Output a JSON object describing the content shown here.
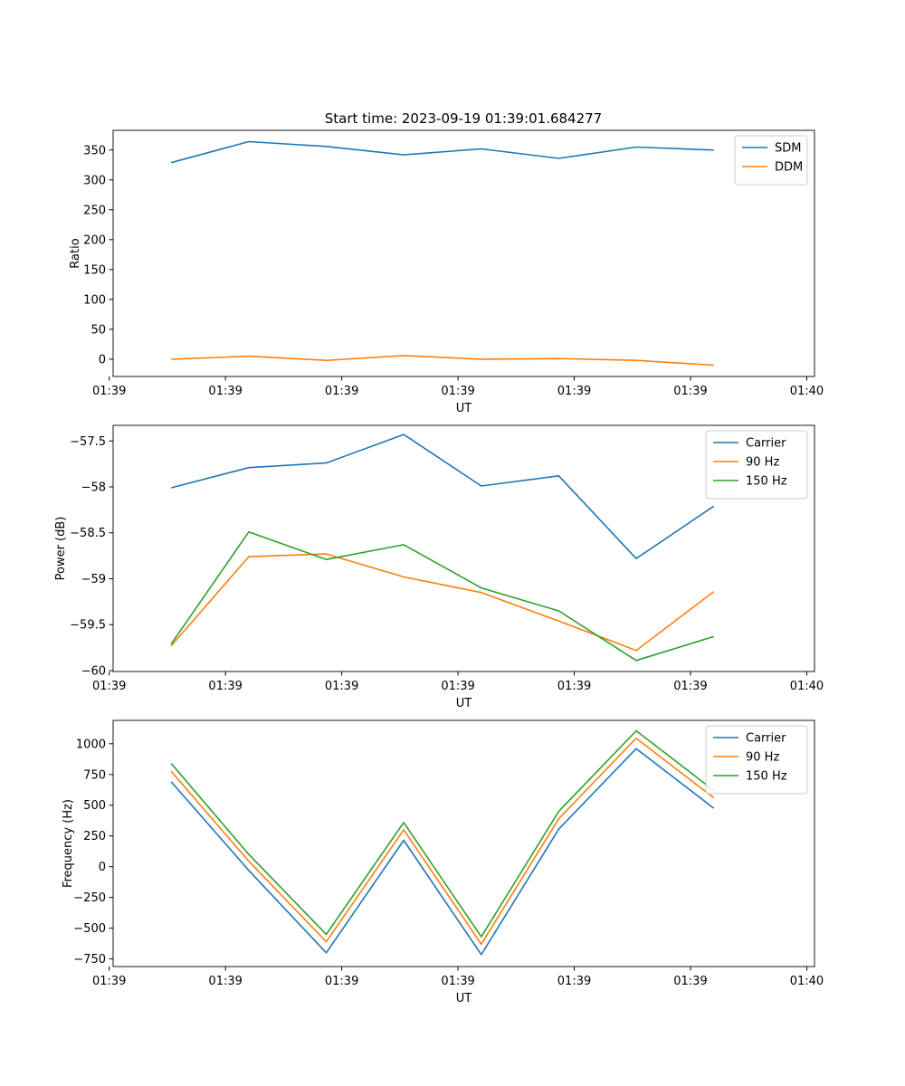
{
  "figure_title": "Start time: 2023-09-19 01:39:01.684277",
  "chart_data": [
    {
      "type": "line",
      "title": "Start time: 2023-09-19 01:39:01.684277",
      "xlabel": "UT",
      "ylabel": "Ratio",
      "x": [
        1,
        2,
        3,
        4,
        5,
        6,
        7,
        8
      ],
      "xlim": [
        0.25,
        9.3
      ],
      "xticks": [
        {
          "value": 0.2,
          "label": "01:39"
        },
        {
          "value": 1.7,
          "label": "01:39"
        },
        {
          "value": 3.2,
          "label": "01:39"
        },
        {
          "value": 4.7,
          "label": "01:39"
        },
        {
          "value": 6.2,
          "label": "01:39"
        },
        {
          "value": 7.7,
          "label": "01:39"
        },
        {
          "value": 9.2,
          "label": "01:40"
        }
      ],
      "ylim": [
        -29,
        383
      ],
      "yticks": [
        0,
        50,
        100,
        150,
        200,
        250,
        300,
        350
      ],
      "legend": "top-right",
      "series": [
        {
          "name": "SDM",
          "color": "#1f77b4",
          "values": [
            329,
            364,
            356,
            342,
            352,
            336,
            355,
            350
          ]
        },
        {
          "name": "DDM",
          "color": "#ff7f0e",
          "values": [
            0,
            5,
            -2,
            6,
            0,
            1,
            -2,
            -10
          ]
        }
      ]
    },
    {
      "type": "line",
      "title": "",
      "xlabel": "UT",
      "ylabel": "Power (dB)",
      "x": [
        1,
        2,
        3,
        4,
        5,
        6,
        7,
        8
      ],
      "xlim": [
        0.25,
        9.3
      ],
      "xticks": [
        {
          "value": 0.2,
          "label": "01:39"
        },
        {
          "value": 1.7,
          "label": "01:39"
        },
        {
          "value": 3.2,
          "label": "01:39"
        },
        {
          "value": 4.7,
          "label": "01:39"
        },
        {
          "value": 6.2,
          "label": "01:39"
        },
        {
          "value": 7.7,
          "label": "01:39"
        },
        {
          "value": 9.2,
          "label": "01:40"
        }
      ],
      "ylim": [
        -60.01,
        -57.33
      ],
      "yticks": [
        -60.0,
        -59.5,
        -59.0,
        -58.5,
        -58.0,
        -57.5
      ],
      "legend": "top-right",
      "series": [
        {
          "name": "Carrier",
          "color": "#1f77b4",
          "values": [
            -58.01,
            -57.79,
            -57.74,
            -57.43,
            -57.99,
            -57.88,
            -58.78,
            -58.21
          ]
        },
        {
          "name": "90 Hz",
          "color": "#ff7f0e",
          "values": [
            -59.73,
            -58.76,
            -58.73,
            -58.98,
            -59.15,
            -59.46,
            -59.78,
            -59.14
          ]
        },
        {
          "name": "150 Hz",
          "color": "#2ca02c",
          "values": [
            -59.71,
            -58.49,
            -58.79,
            -58.63,
            -59.1,
            -59.35,
            -59.89,
            -59.63
          ]
        }
      ]
    },
    {
      "type": "line",
      "title": "",
      "xlabel": "UT",
      "ylabel": "Frequency (Hz)",
      "x": [
        1,
        2,
        3,
        4,
        5,
        6,
        7,
        8
      ],
      "xlim": [
        0.25,
        9.3
      ],
      "xticks": [
        {
          "value": 0.2,
          "label": "01:39"
        },
        {
          "value": 1.7,
          "label": "01:39"
        },
        {
          "value": 3.2,
          "label": "01:39"
        },
        {
          "value": 4.7,
          "label": "01:39"
        },
        {
          "value": 6.2,
          "label": "01:39"
        },
        {
          "value": 7.7,
          "label": "01:39"
        },
        {
          "value": 9.2,
          "label": "01:40"
        }
      ],
      "ylim": [
        -812,
        1190
      ],
      "yticks": [
        -750,
        -500,
        -250,
        0,
        250,
        500,
        750,
        1000
      ],
      "legend": "top-right",
      "series": [
        {
          "name": "Carrier",
          "color": "#1f77b4",
          "values": [
            690,
            -30,
            -700,
            215,
            -715,
            305,
            960,
            475
          ]
        },
        {
          "name": "90 Hz",
          "color": "#ff7f0e",
          "values": [
            775,
            45,
            -610,
            300,
            -630,
            390,
            1045,
            560
          ]
        },
        {
          "name": "150 Hz",
          "color": "#2ca02c",
          "values": [
            840,
            100,
            -550,
            360,
            -570,
            450,
            1105,
            620
          ]
        }
      ]
    }
  ]
}
